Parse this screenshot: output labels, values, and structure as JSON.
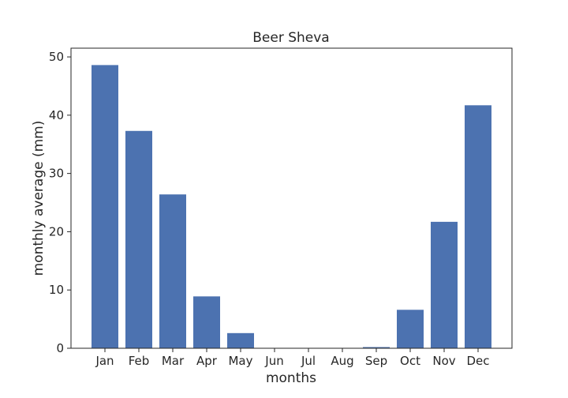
{
  "chart_data": {
    "type": "bar",
    "title": "Beer Sheva",
    "xlabel": "months",
    "ylabel": "monthly average (mm)",
    "categories": [
      "Jan",
      "Feb",
      "Mar",
      "Apr",
      "May",
      "Jun",
      "Jul",
      "Aug",
      "Sep",
      "Oct",
      "Nov",
      "Dec"
    ],
    "values": [
      48.6,
      37.3,
      26.4,
      8.9,
      2.6,
      0.0,
      0.0,
      0.0,
      0.2,
      6.6,
      21.7,
      41.7
    ],
    "ylim": [
      0,
      51.5
    ],
    "yticks": [
      0,
      10,
      20,
      30,
      40,
      50
    ],
    "bar_color": "#4c72b0",
    "grid": false
  }
}
